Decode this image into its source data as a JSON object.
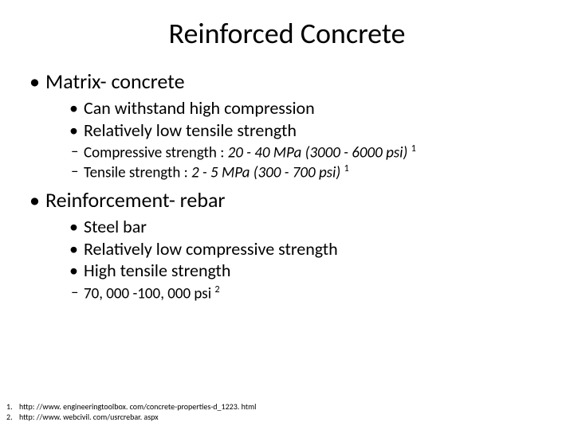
{
  "title": "Reinforced Concrete",
  "sections": [
    {
      "heading": "Matrix- concrete",
      "points": [
        "Can withstand high compression",
        "Relatively low tensile strength"
      ],
      "details": [
        {
          "label": "Compressive strength : ",
          "value": "20 - 40 MPa (3000 - 6000 psi)",
          "ref": "1"
        },
        {
          "label": "Tensile strength : ",
          "value": "2 - 5 MPa (300 - 700 psi)",
          "ref": "1"
        }
      ]
    },
    {
      "heading": "Reinforcement- rebar",
      "points": [
        "Steel bar",
        "Relatively low compressive strength",
        "High tensile strength"
      ],
      "details": [
        {
          "label": "70, 000 -100, 000 psi ",
          "value": "",
          "ref": "2"
        }
      ]
    }
  ],
  "references": [
    {
      "num": "1.",
      "text": "http: //www. engineeringtoolbox. com/concrete-properties-d_1223. html"
    },
    {
      "num": "2.",
      "text": "http: //www. webcivil. com/usrcrebar. aspx"
    }
  ],
  "style": {
    "background_color": "#ffffff",
    "text_color": "#000000",
    "title_fontsize": 36,
    "lvl1_fontsize": 26,
    "lvl2_fontsize": 22,
    "lvl3_fontsize": 19,
    "ref_fontsize": 10
  }
}
